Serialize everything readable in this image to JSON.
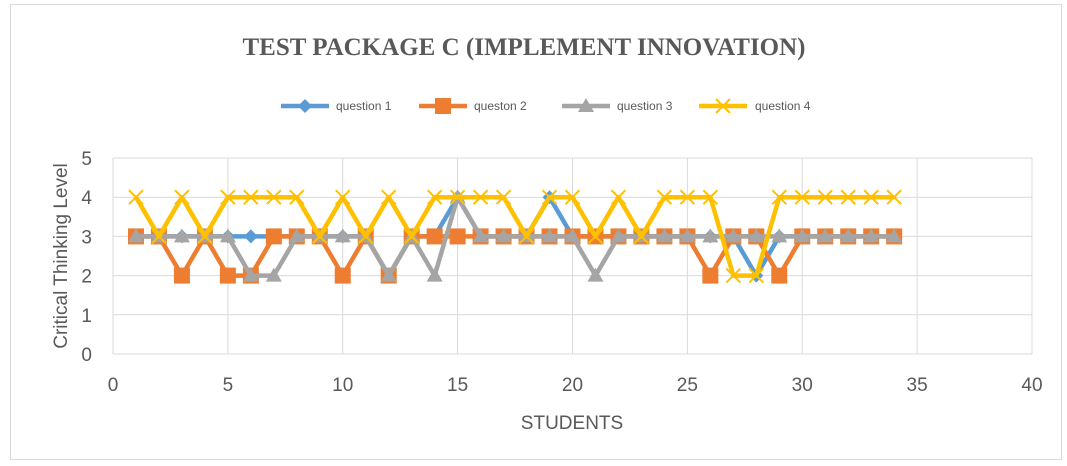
{
  "chart_data": {
    "type": "line",
    "title": "TEST PACKAGE C (IMPLEMENT INNOVATION)",
    "xlabel": "STUDENTS",
    "ylabel": "Critical Thinking Level",
    "xlim": [
      0,
      40
    ],
    "ylim": [
      0,
      5
    ],
    "xticks": [
      0,
      5,
      10,
      15,
      20,
      25,
      30,
      35,
      40
    ],
    "yticks": [
      0,
      1,
      2,
      3,
      4,
      5
    ],
    "grid": true,
    "legend_position": "top",
    "x": [
      1,
      2,
      3,
      4,
      5,
      6,
      7,
      8,
      9,
      10,
      11,
      12,
      13,
      14,
      15,
      16,
      17,
      18,
      19,
      20,
      21,
      22,
      23,
      24,
      25,
      26,
      27,
      28,
      29,
      30,
      31,
      32,
      33,
      34
    ],
    "series": [
      {
        "name": "question 1",
        "color": "#5b9bd5",
        "marker": "diamond",
        "values": [
          3,
          3,
          3,
          3,
          3,
          3,
          3,
          3,
          3,
          3,
          3,
          2,
          3,
          3,
          4,
          3,
          3,
          3,
          4,
          3,
          3,
          3,
          3,
          3,
          3,
          3,
          3,
          2,
          3,
          3,
          3,
          3,
          3,
          3
        ]
      },
      {
        "name": "queston 2",
        "color": "#ed7d31",
        "marker": "square",
        "values": [
          3,
          3,
          2,
          3,
          2,
          2,
          3,
          3,
          3,
          2,
          3,
          2,
          3,
          3,
          3,
          3,
          3,
          3,
          3,
          3,
          3,
          3,
          3,
          3,
          3,
          2,
          3,
          3,
          2,
          3,
          3,
          3,
          3,
          3
        ]
      },
      {
        "name": "question 3",
        "color": "#a5a5a5",
        "marker": "triangle",
        "values": [
          3,
          3,
          3,
          3,
          3,
          2,
          2,
          3,
          3,
          3,
          3,
          2,
          3,
          2,
          4,
          3,
          3,
          3,
          3,
          3,
          2,
          3,
          3,
          3,
          3,
          3,
          3,
          3,
          3,
          3,
          3,
          3,
          3,
          3
        ]
      },
      {
        "name": "question 4",
        "color": "#ffc000",
        "marker": "x",
        "values": [
          4,
          3,
          4,
          3,
          4,
          4,
          4,
          4,
          3,
          4,
          3,
          4,
          3,
          4,
          4,
          4,
          4,
          3,
          4,
          4,
          3,
          4,
          3,
          4,
          4,
          4,
          2,
          2,
          4,
          4,
          4,
          4,
          4,
          4
        ]
      }
    ]
  }
}
